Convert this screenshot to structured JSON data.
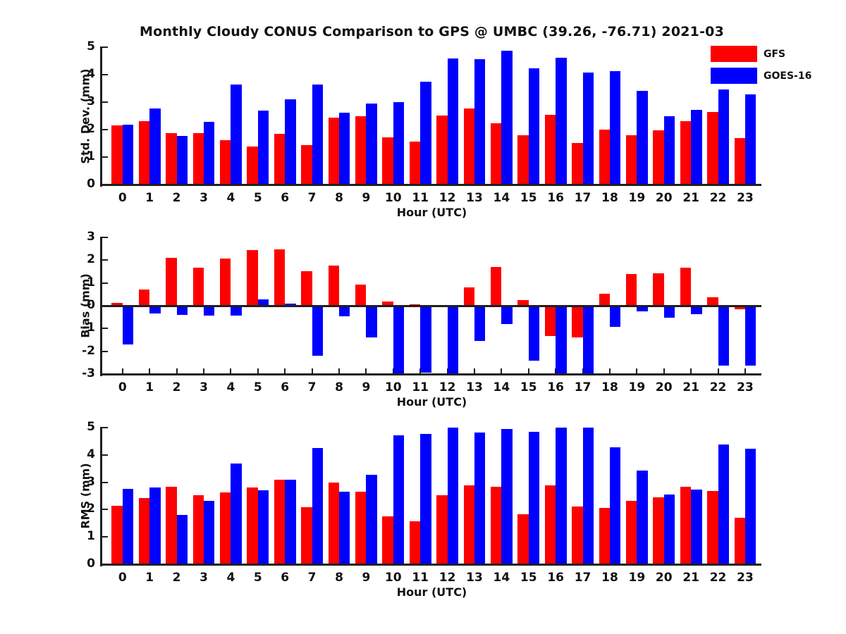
{
  "title": "Monthly Cloudy CONUS Comparison to GPS @ UMBC (39.26, -76.71) 2021-03",
  "legend": {
    "items": [
      {
        "label": "GFS",
        "color": "#ff0000"
      },
      {
        "label": "GOES-16",
        "color": "#0000ff"
      }
    ]
  },
  "colors": {
    "gfs": "#ff0000",
    "goes16": "#0000ff",
    "axis": "#1f1f1f",
    "background": "#ffffff"
  },
  "chart_data": [
    {
      "type": "bar",
      "panel": "std-dev",
      "ylabel": "Std. Dev. (mm)",
      "xlabel": "Hour (UTC)",
      "ylim": [
        0,
        5
      ],
      "yticks": [
        0,
        1,
        2,
        3,
        4,
        5
      ],
      "grid": false,
      "legend_position": "top-right-outside",
      "categories": [
        0,
        1,
        2,
        3,
        4,
        5,
        6,
        7,
        8,
        9,
        10,
        11,
        12,
        13,
        14,
        15,
        16,
        17,
        18,
        19,
        20,
        21,
        22,
        23
      ],
      "series": [
        {
          "name": "GFS",
          "color": "#ff0000",
          "values": [
            2.16,
            2.3,
            1.87,
            1.88,
            1.62,
            1.38,
            1.85,
            1.43,
            2.43,
            2.48,
            1.72,
            1.57,
            2.52,
            2.78,
            2.22,
            1.8,
            2.55,
            1.52,
            2.01,
            1.8,
            1.98,
            2.3,
            2.63,
            1.7
          ]
        },
        {
          "name": "GOES-16",
          "color": "#0000ff",
          "values": [
            2.19,
            2.78,
            1.78,
            2.28,
            3.65,
            2.7,
            3.1,
            3.63,
            2.62,
            2.95,
            3.0,
            3.75,
            4.58,
            4.56,
            4.87,
            4.22,
            4.62,
            4.08,
            4.14,
            3.4,
            2.5,
            2.72,
            3.45,
            3.28
          ]
        }
      ]
    },
    {
      "type": "bar",
      "panel": "bias",
      "ylabel": "Bias (mm)",
      "xlabel": "Hour (UTC)",
      "ylim": [
        -3,
        3
      ],
      "yticks": [
        -3,
        -2,
        -1,
        0,
        1,
        2,
        3
      ],
      "grid": false,
      "categories": [
        0,
        1,
        2,
        3,
        4,
        5,
        6,
        7,
        8,
        9,
        10,
        11,
        12,
        13,
        14,
        15,
        16,
        17,
        18,
        19,
        20,
        21,
        22,
        23
      ],
      "series": [
        {
          "name": "GFS",
          "color": "#ff0000",
          "values": [
            0.12,
            0.7,
            2.1,
            1.67,
            2.07,
            2.43,
            2.47,
            1.52,
            1.75,
            0.93,
            0.2,
            0.07,
            -0.05,
            0.81,
            1.7,
            0.26,
            -1.32,
            -1.4,
            0.53,
            1.38,
            1.42,
            1.66,
            0.37,
            -0.15
          ]
        },
        {
          "name": "GOES-16",
          "color": "#0000ff",
          "values": [
            -1.7,
            -0.35,
            -0.4,
            -0.44,
            -0.42,
            0.27,
            0.1,
            -2.2,
            -0.45,
            -1.38,
            -3.0,
            -2.93,
            -3.0,
            -1.56,
            -0.81,
            -2.4,
            -3.0,
            -3.0,
            -0.92,
            -0.26,
            -0.52,
            -0.38,
            -2.64,
            -2.64
          ]
        }
      ]
    },
    {
      "type": "bar",
      "panel": "rms",
      "ylabel": "RMS (mm)",
      "xlabel": "Hour (UTC)",
      "ylim": [
        0,
        5
      ],
      "yticks": [
        0,
        1,
        2,
        3,
        4,
        5
      ],
      "grid": false,
      "categories": [
        0,
        1,
        2,
        3,
        4,
        5,
        6,
        7,
        8,
        9,
        10,
        11,
        12,
        13,
        14,
        15,
        16,
        17,
        18,
        19,
        20,
        21,
        22,
        23
      ],
      "series": [
        {
          "name": "GFS",
          "color": "#ff0000",
          "values": [
            2.13,
            2.42,
            2.83,
            2.52,
            2.62,
            2.8,
            3.08,
            2.1,
            2.98,
            2.66,
            1.75,
            1.58,
            2.53,
            2.89,
            2.83,
            1.83,
            2.88,
            2.11,
            2.07,
            2.31,
            2.45,
            2.83,
            2.68,
            1.71
          ]
        },
        {
          "name": "GOES-16",
          "color": "#0000ff",
          "values": [
            2.75,
            2.8,
            1.8,
            2.31,
            3.68,
            2.7,
            3.08,
            4.24,
            2.65,
            3.27,
            4.72,
            4.76,
            5.0,
            4.82,
            4.95,
            4.85,
            5.0,
            5.0,
            4.28,
            3.43,
            2.56,
            2.74,
            4.37,
            4.23
          ]
        }
      ]
    }
  ]
}
